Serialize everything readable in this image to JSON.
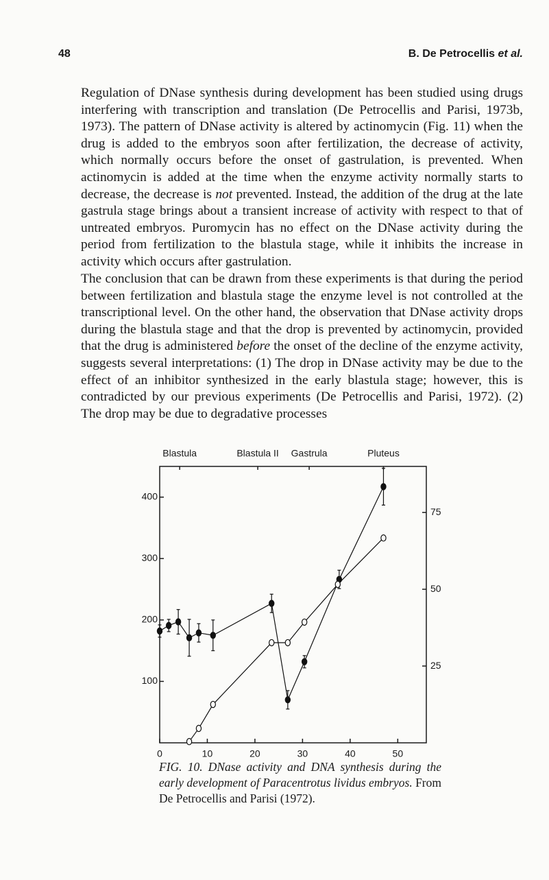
{
  "header": {
    "page_number": "48",
    "author": "B. De Petrocellis",
    "et_al": "et al."
  },
  "paragraphs": [
    {
      "runs": [
        {
          "text": "Regulation of DNase synthesis during development has been studied using drugs interfering with transcription and translation (De Petrocellis and Parisi, 1973b, 1973). The pattern of DNase activity is altered by actinomycin (Fig. 11) when the drug is added to the embryos soon after fertilization, the decrease of activity, which normally occurs before the onset of gastrulation, is prevented. When actinomycin is added at the time when the enzyme activity normally starts to decrease, the decrease is ",
          "italic": false
        },
        {
          "text": "not",
          "italic": true
        },
        {
          "text": " prevented. Instead, the addition of the drug at the late gastrula stage brings about a transient increase of activity with respect to that of untreated embryos. Puromycin has no effect on the DNase activity during the period from fertilization to the blastula stage, while it inhibits the increase in activity which occurs after gastrulation.",
          "italic": false
        }
      ]
    },
    {
      "runs": [
        {
          "text": "The conclusion that can be drawn from these experiments is that during the period between fertilization and blastula stage the enzyme level is not controlled at the transcriptional level. On the other hand, the observation that DNase activity drops during the blastula stage and that the drop is prevented by actinomycin, provided that the drug is administered ",
          "italic": false
        },
        {
          "text": "before",
          "italic": true
        },
        {
          "text": " the onset of the decline of the enzyme activity, suggests several interpretations: (1) The drop in DNase activity may be due to the effect of an inhibitor synthesized in the early blastula stage; however, this is contradicted by our previous experiments (De Petrocellis and Parisi, 1972). (2) The drop may be due to degradative processes",
          "italic": false
        }
      ]
    }
  ],
  "figure": {
    "chart_data": {
      "type": "line",
      "xlim": [
        0,
        56
      ],
      "xticks": [
        0,
        10,
        20,
        30,
        40,
        50
      ],
      "ylim": [
        0,
        450
      ],
      "yticks": [
        100,
        200,
        300,
        400
      ],
      "y2lim": [
        0,
        90
      ],
      "y2ticks": [
        25,
        50,
        75
      ],
      "stages": [
        {
          "label": "Blastula",
          "x": 4.2
        },
        {
          "label": "Blastula II",
          "x": 20.6
        },
        {
          "label": "Gastrula",
          "x": 31.4
        },
        {
          "label": "Pluteus",
          "x": 47
        }
      ],
      "series": [
        {
          "marker": "filled",
          "color": "#111111",
          "x": [
            0,
            1.9,
            3.9,
            6.2,
            8.2,
            11.2,
            23.5,
            26.9,
            30.4,
            37.7,
            47
          ],
          "values": [
            182,
            191,
            197,
            171,
            179,
            175,
            227,
            70,
            132,
            266,
            417
          ],
          "errors": [
            10,
            10,
            20,
            30,
            15,
            25,
            15,
            15,
            10,
            15,
            30
          ]
        },
        {
          "marker": "open",
          "color": "#111111",
          "axis": "y2",
          "x": [
            6.2,
            8.2,
            11.2,
            23.5,
            26.9,
            30.4,
            37.4,
            47
          ],
          "values": [
            0.4,
            4.7,
            12.5,
            32.6,
            32.6,
            39.3,
            51.6,
            66.7
          ]
        }
      ]
    },
    "caption": {
      "runs": [
        {
          "text": "FIG. 10. DNase activity and DNA synthesis during the early development of Paracentrotus lividus embryos.",
          "italic": true
        },
        {
          "text": " From De Petrocellis and Parisi (1972).",
          "italic": false
        }
      ]
    }
  }
}
